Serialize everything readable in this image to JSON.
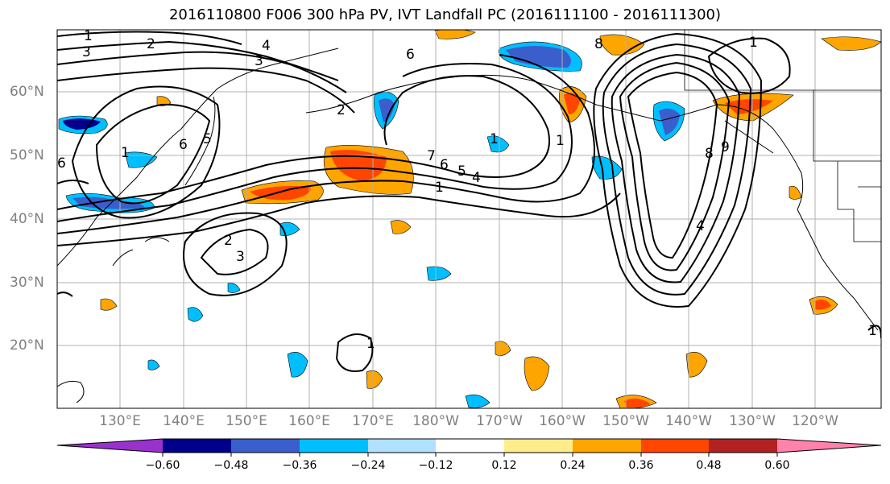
{
  "title": "2016110800 F006 300 hPa PV, IVT Landfall PC (2016111100 - 2016111300)",
  "lat_labels": [
    "60°N",
    "50°N",
    "40°N",
    "30°N",
    "20°N"
  ],
  "lon_labels": [
    "130°E",
    "140°E",
    "150°E",
    "160°E",
    "170°E",
    "180°W",
    "170°W",
    "160°W",
    "150°W",
    "140°W",
    "130°W",
    "120°W"
  ],
  "contour_labels": [
    "1",
    "3",
    "2",
    "4",
    "3",
    "6",
    "1",
    "2",
    "6",
    "5",
    "1",
    "6",
    "7",
    "6",
    "5",
    "4",
    "1",
    "1",
    "8",
    "1",
    "8",
    "9",
    "4",
    "2",
    "3",
    "1",
    "1"
  ],
  "colorbar": {
    "ticks": [
      "−0.60",
      "−0.48",
      "−0.36",
      "−0.24",
      "−0.12",
      "0.12",
      "0.24",
      "0.36",
      "0.48",
      "0.60"
    ],
    "colors": [
      "#9932cc",
      "#00008b",
      "#3a5fcd",
      "#00bfff",
      "#b0e2ff",
      "#ffffff",
      "#ffec8b",
      "#ffa500",
      "#ff4500",
      "#b22222",
      "#ff82ab"
    ]
  }
}
